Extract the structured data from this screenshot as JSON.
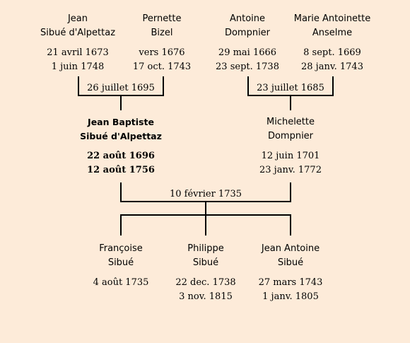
{
  "grandparents": [
    {
      "name_line1": "Jean",
      "name_line2": "Sibué d'Alpettaz",
      "birth": "21 avril 1673",
      "death": "1 juin 1748"
    },
    {
      "name_line1": "Pernette",
      "name_line2": "Bizel",
      "birth": "vers 1676",
      "death": "17 oct. 1743"
    },
    {
      "name_line1": "Antoine",
      "name_line2": "Dompnier",
      "birth": "29 mai 1666",
      "death": "23 sept. 1738"
    },
    {
      "name_line1": "Marie Antoinette",
      "name_line2": "Anselme",
      "birth": "8 sept. 1669",
      "death": "28 janv. 1743"
    }
  ],
  "grandparent_marriages": [
    "26 juillet 1695",
    "23 juillet 1685"
  ],
  "parents": [
    {
      "name_line1": "Jean Baptiste",
      "name_line2": "Sibué d'Alpettaz",
      "birth": "22 août 1696",
      "death": "12 août 1756"
    },
    {
      "name_line1": "Michelette",
      "name_line2": "Dompnier",
      "birth": "12 juin 1701",
      "death": "23 janv. 1772"
    }
  ],
  "parent_marriage": "10 février 1735",
  "children": [
    {
      "name_line1": "Françoise",
      "name_line2": "Sibué",
      "birth": "4 août 1735",
      "death": ""
    },
    {
      "name_line1": "Philippe",
      "name_line2": "Sibué",
      "birth": "22 dec. 1738",
      "death": "3 nov. 1815"
    },
    {
      "name_line1": "Jean Antoine",
      "name_line2": "Sibué",
      "birth": "27 mars 1743",
      "death": "1 janv. 1805"
    }
  ]
}
